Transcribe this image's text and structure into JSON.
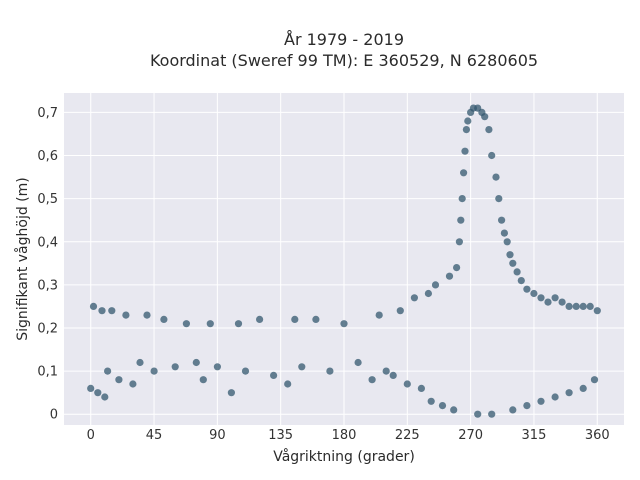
{
  "chart_data": {
    "type": "scatter",
    "title_line1": "År 1979 - 2019",
    "title_line2": "Koordinat (Sweref 99 TM): E 360529, N 6280605",
    "xlabel": "Vågriktning (grader)",
    "ylabel": "Signifikant våghöjd (m)",
    "xlim": [
      -19,
      379
    ],
    "ylim": [
      -0.025,
      0.745
    ],
    "grid": true,
    "marker_color": "#34586F",
    "plot_background": "#E8E8F0",
    "x_ticks": [
      {
        "value": 0,
        "label": "0"
      },
      {
        "value": 45,
        "label": "45"
      },
      {
        "value": 90,
        "label": "90"
      },
      {
        "value": 135,
        "label": "135"
      },
      {
        "value": 180,
        "label": "180"
      },
      {
        "value": 225,
        "label": "225"
      },
      {
        "value": 270,
        "label": "270"
      },
      {
        "value": 315,
        "label": "315"
      },
      {
        "value": 360,
        "label": "360"
      }
    ],
    "y_ticks": [
      {
        "value": 0,
        "label": "0"
      },
      {
        "value": 0.1,
        "label": "0,1"
      },
      {
        "value": 0.2,
        "label": "0,2"
      },
      {
        "value": 0.3,
        "label": "0,3"
      },
      {
        "value": 0.4,
        "label": "0,4"
      },
      {
        "value": 0.5,
        "label": "0,5"
      },
      {
        "value": 0.6,
        "label": "0,6"
      },
      {
        "value": 0.7,
        "label": "0,7"
      }
    ],
    "series": [
      {
        "points": [
          [
            0,
            0.06
          ],
          [
            2,
            0.25
          ],
          [
            5,
            0.05
          ],
          [
            8,
            0.24
          ],
          [
            10,
            0.04
          ],
          [
            12,
            0.1
          ],
          [
            15,
            0.24
          ],
          [
            20,
            0.08
          ],
          [
            25,
            0.23
          ],
          [
            30,
            0.07
          ],
          [
            35,
            0.12
          ],
          [
            40,
            0.23
          ],
          [
            45,
            0.1
          ],
          [
            52,
            0.22
          ],
          [
            60,
            0.11
          ],
          [
            68,
            0.21
          ],
          [
            75,
            0.12
          ],
          [
            80,
            0.08
          ],
          [
            85,
            0.21
          ],
          [
            90,
            0.11
          ],
          [
            100,
            0.05
          ],
          [
            105,
            0.21
          ],
          [
            110,
            0.1
          ],
          [
            120,
            0.22
          ],
          [
            130,
            0.09
          ],
          [
            140,
            0.07
          ],
          [
            145,
            0.22
          ],
          [
            150,
            0.11
          ],
          [
            160,
            0.22
          ],
          [
            170,
            0.1
          ],
          [
            180,
            0.21
          ],
          [
            190,
            0.12
          ],
          [
            200,
            0.08
          ],
          [
            205,
            0.23
          ],
          [
            210,
            0.1
          ],
          [
            215,
            0.09
          ],
          [
            220,
            0.24
          ],
          [
            225,
            0.07
          ],
          [
            230,
            0.27
          ],
          [
            235,
            0.06
          ],
          [
            240,
            0.28
          ],
          [
            242,
            0.03
          ],
          [
            245,
            0.3
          ],
          [
            250,
            0.02
          ],
          [
            255,
            0.32
          ],
          [
            258,
            0.01
          ],
          [
            260,
            0.34
          ],
          [
            262,
            0.4
          ],
          [
            263,
            0.45
          ],
          [
            264,
            0.5
          ],
          [
            265,
            0.56
          ],
          [
            266,
            0.61
          ],
          [
            267,
            0.66
          ],
          [
            268,
            0.68
          ],
          [
            270,
            0.7
          ],
          [
            272,
            0.71
          ],
          [
            275,
            0.71
          ],
          [
            278,
            0.7
          ],
          [
            280,
            0.69
          ],
          [
            283,
            0.66
          ],
          [
            285,
            0.6
          ],
          [
            288,
            0.55
          ],
          [
            290,
            0.5
          ],
          [
            292,
            0.45
          ],
          [
            294,
            0.42
          ],
          [
            296,
            0.4
          ],
          [
            298,
            0.37
          ],
          [
            300,
            0.35
          ],
          [
            303,
            0.33
          ],
          [
            306,
            0.31
          ],
          [
            310,
            0.29
          ],
          [
            315,
            0.28
          ],
          [
            320,
            0.27
          ],
          [
            325,
            0.26
          ],
          [
            330,
            0.27
          ],
          [
            335,
            0.26
          ],
          [
            340,
            0.25
          ],
          [
            345,
            0.25
          ],
          [
            350,
            0.25
          ],
          [
            355,
            0.25
          ],
          [
            360,
            0.24
          ],
          [
            300,
            0.01
          ],
          [
            310,
            0.02
          ],
          [
            320,
            0.03
          ],
          [
            330,
            0.04
          ],
          [
            340,
            0.05
          ],
          [
            350,
            0.06
          ],
          [
            358,
            0.08
          ],
          [
            285,
            0.0
          ],
          [
            275,
            0.0
          ]
        ]
      }
    ]
  }
}
